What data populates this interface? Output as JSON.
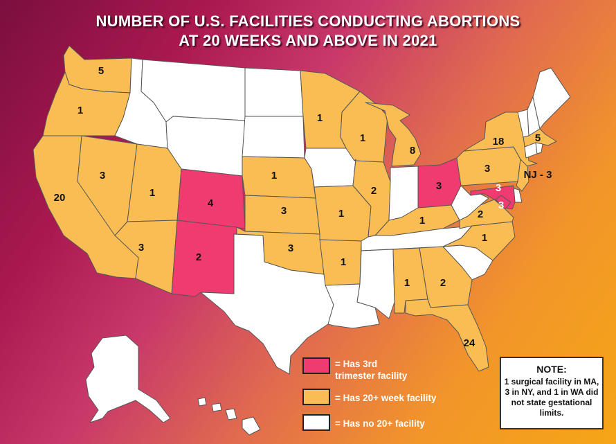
{
  "title_line1": "NUMBER OF U.S. FACILITIES  CONDUCTING ABORTIONS",
  "title_line2": "AT 20 WEEKS AND ABOVE IN 2021",
  "colors": {
    "third_trimester": "#ef3b6f",
    "twenty_week": "#f9bd54",
    "none": "#ffffff"
  },
  "states": {
    "WA": {
      "category": "twenty_week",
      "count": "5"
    },
    "OR": {
      "category": "twenty_week",
      "count": "1"
    },
    "CA": {
      "category": "twenty_week",
      "count": "20"
    },
    "NV": {
      "category": "twenty_week",
      "count": "3"
    },
    "UT": {
      "category": "twenty_week",
      "count": "1"
    },
    "AZ": {
      "category": "twenty_week",
      "count": "3"
    },
    "CO": {
      "category": "third_trimester",
      "count": "4"
    },
    "NM": {
      "category": "third_trimester",
      "count": "2"
    },
    "NE": {
      "category": "twenty_week",
      "count": "1"
    },
    "KS": {
      "category": "twenty_week",
      "count": "3"
    },
    "OK": {
      "category": "twenty_week",
      "count": "3"
    },
    "MN": {
      "category": "twenty_week",
      "count": "1"
    },
    "WI": {
      "category": "twenty_week",
      "count": "1"
    },
    "IL": {
      "category": "twenty_week",
      "count": "2"
    },
    "MO": {
      "category": "twenty_week",
      "count": "1"
    },
    "AR": {
      "category": "twenty_week",
      "count": "1"
    },
    "MI": {
      "category": "twenty_week",
      "count": "8"
    },
    "OH": {
      "category": "third_trimester",
      "count": "3"
    },
    "KY": {
      "category": "twenty_week",
      "count": "1"
    },
    "TN": {
      "category": "none",
      "count": ""
    },
    "AL": {
      "category": "twenty_week",
      "count": "1"
    },
    "GA": {
      "category": "twenty_week",
      "count": "2"
    },
    "FL": {
      "category": "twenty_week",
      "count": "24"
    },
    "NC": {
      "category": "twenty_week",
      "count": "1"
    },
    "VA": {
      "category": "twenty_week",
      "count": "2"
    },
    "PA": {
      "category": "twenty_week",
      "count": "3"
    },
    "NY": {
      "category": "twenty_week",
      "count": "18"
    },
    "MA": {
      "category": "twenty_week",
      "count": "5"
    },
    "NJ": {
      "category": "twenty_week",
      "count": "NJ - 3"
    },
    "MD": {
      "category": "third_trimester",
      "count": "3"
    },
    "DC": {
      "category": "third_trimester",
      "count": "3"
    }
  },
  "legend": [
    {
      "key": "third_trimester",
      "label": "= Has 3rd trimester facility"
    },
    {
      "key": "twenty_week",
      "label": "= Has 20+ week facility"
    },
    {
      "key": "none",
      "label": "= Has no 20+ facility"
    }
  ],
  "note": {
    "title": "NOTE:",
    "body": "1 surgical facility in MA, 3 in NY, and 1 in WA did not state gestational limits."
  }
}
